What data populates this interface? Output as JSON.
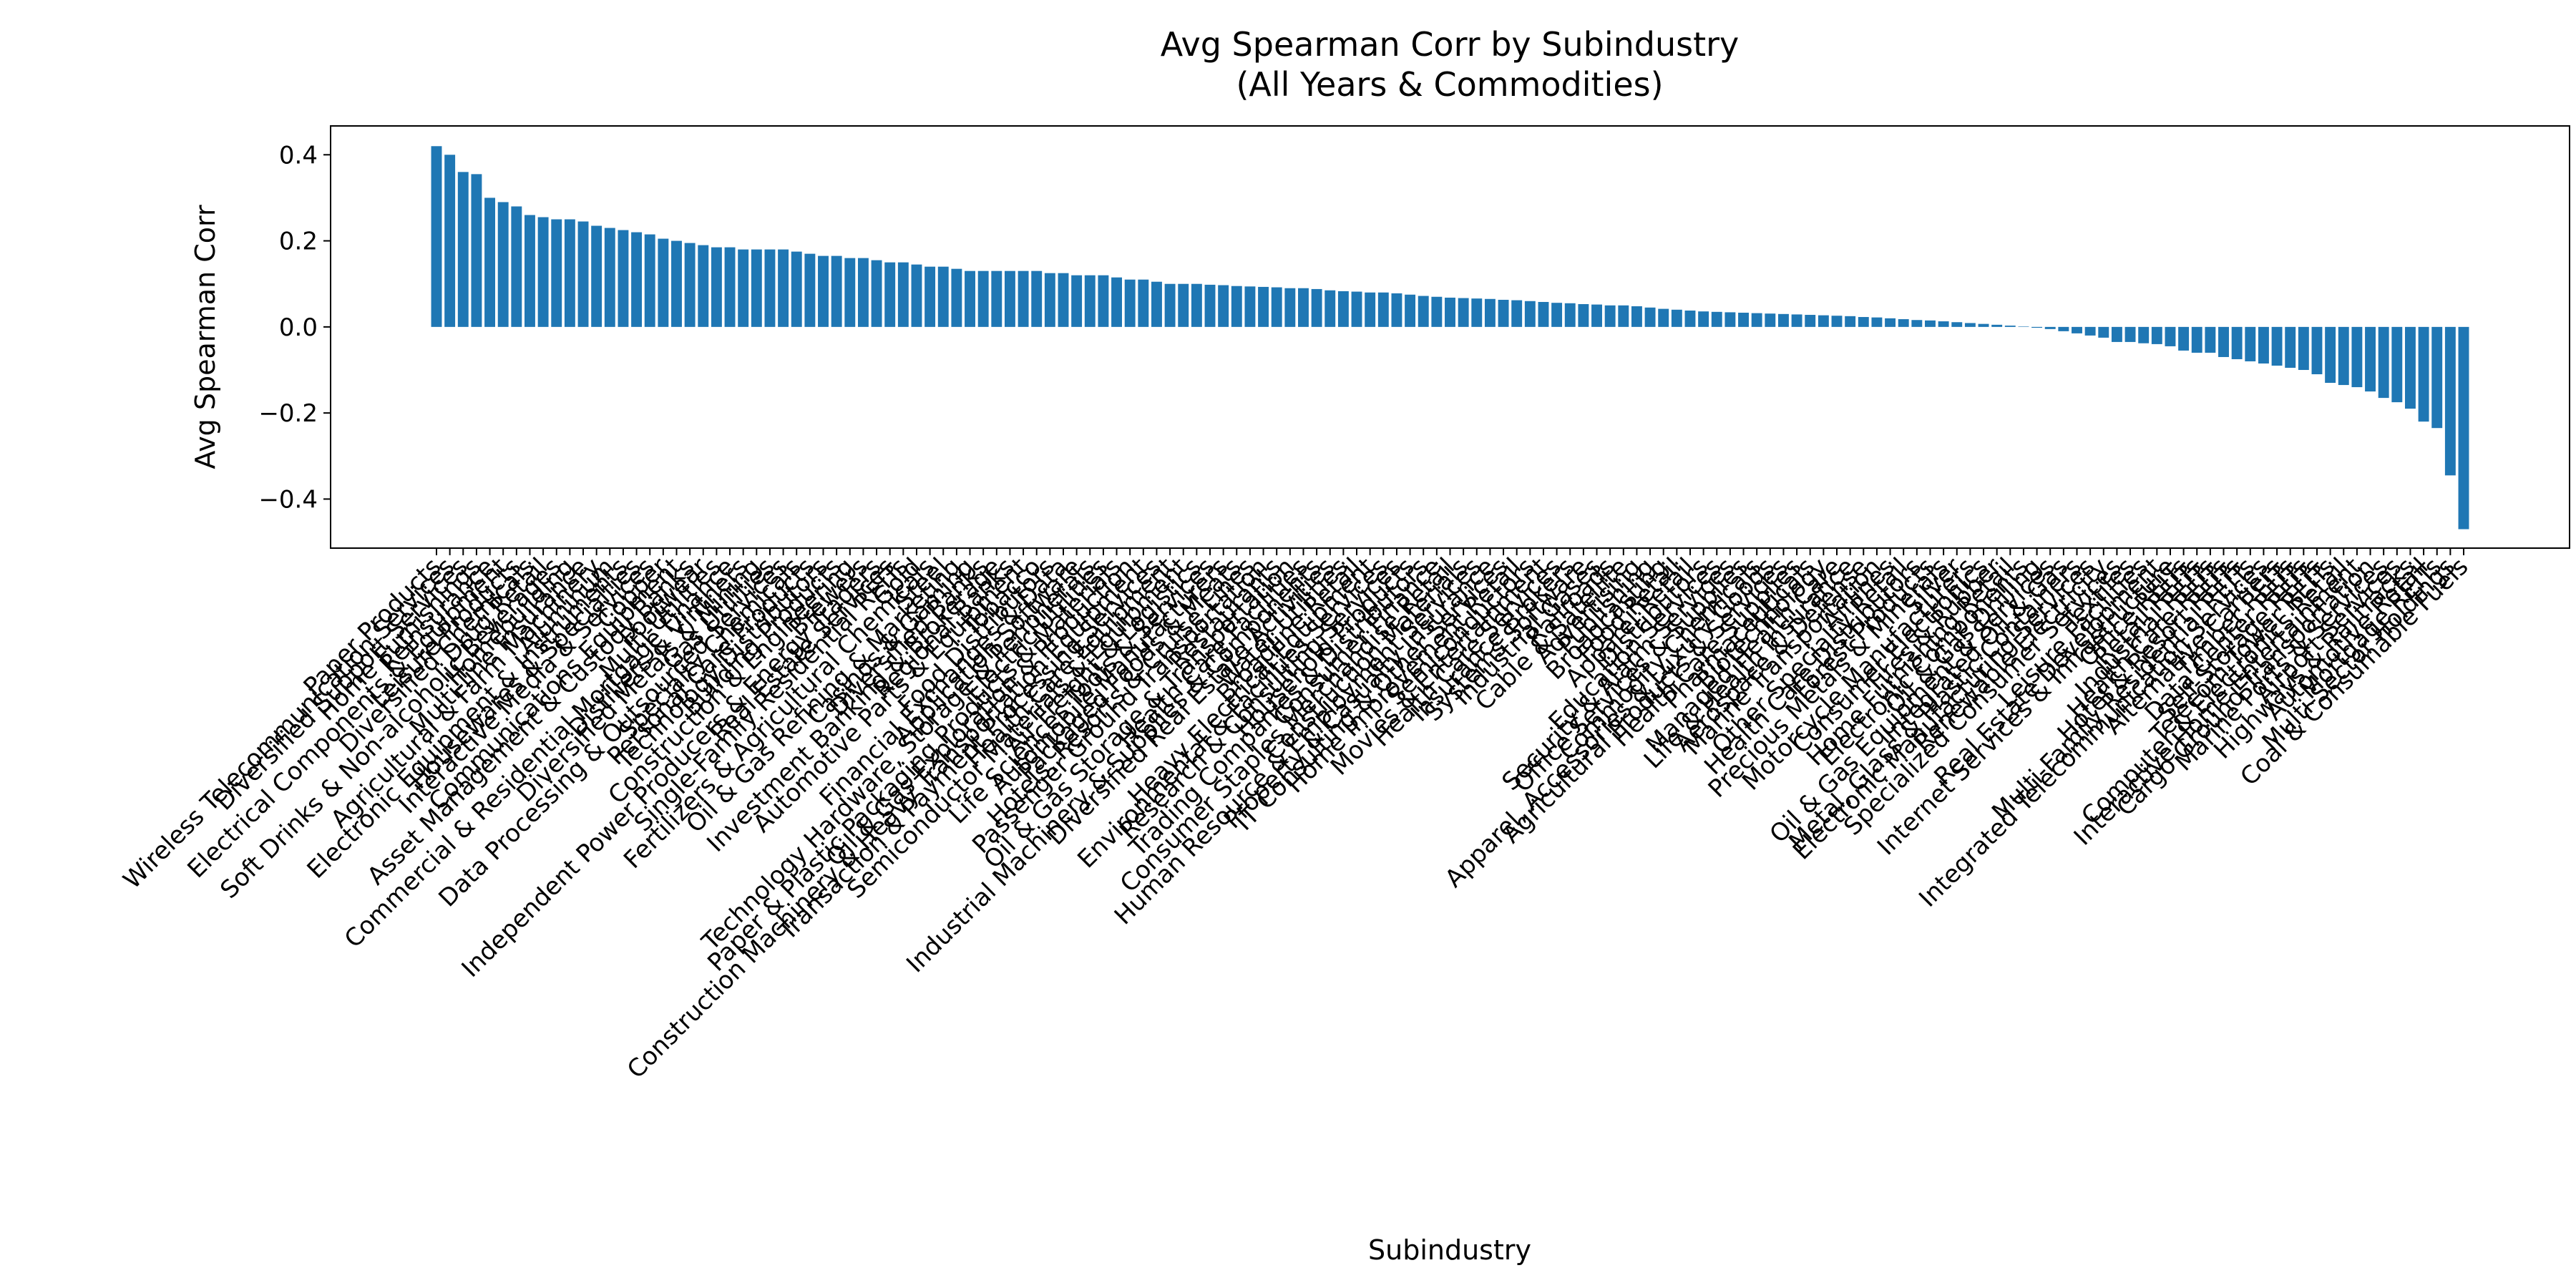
{
  "chart_data": {
    "type": "bar",
    "title": "Avg Spearman Corr by Subindustry",
    "subtitle": "(All Years & Commodities)",
    "x_label": "Subindustry",
    "y_label": "Avg Spearman Corr",
    "color": "#1f77b4",
    "ylim": [
      -0.514,
      0.467
    ],
    "yticks": [
      {
        "value": -0.4,
        "label": "−0.4"
      },
      {
        "value": -0.2,
        "label": "−0.2"
      },
      {
        "value": 0,
        "label": "0.0"
      },
      {
        "value": 0.2,
        "label": "0.2"
      },
      {
        "value": 0.4,
        "label": "0.4"
      }
    ],
    "categories": [
      "Paper Products",
      "Wireless Telecommunication Services",
      "Diversified Support Services",
      "Home Furnishings",
      "Reinsurance",
      "Electrical Components & Equipment",
      "Leisure Products",
      "Diversified Chemicals",
      "Drug Retail",
      "Soft Drinks & Non-alcoholic Beverages",
      "Homebuilding",
      "Multi-line Insurance",
      "Agricultural & Farm Machinery",
      "Aluminum",
      "Electronic Equipment & Instruments",
      "Housewares & Specialties",
      "Interactive Media & Services",
      "Copper",
      "Communications Equipment",
      "Asset Management & Custody Banks",
      "Footwear",
      "Multi-Utilities",
      "Commercial & Residential Mortgage Finance",
      "Distillers & Vintners",
      "Diversified Metals & Mining",
      "Gas Utilities",
      "Data Processing & Outsourced Services",
      "Specialty Chemicals",
      "Personal Care Products",
      "Technology Distributors",
      "Building Products",
      "Construction & Engineering",
      "Brewers",
      "Independent Power Producers & Energy Traders",
      "Real Estate Services",
      "Single-Family Residential REITs",
      "Gold",
      "Fertilizers & Agricultural Chemicals",
      "Steel",
      "Oil & Gas Refining & Marketing",
      "Casinos & Gaming",
      "Diversified Banks",
      "Investment Banking & Brokerage",
      "Regional Banks",
      "Automotive Parts & Equipment",
      "Tobacco",
      "Food Distributors",
      "Financial Exchanges & Data",
      "Application Software",
      "Technology Hardware, Storage & Peripherals",
      "Electric Utilities",
      "Paper & Plastic Packaging Products & Materials",
      "Oil & Gas Exploration & Production",
      "Construction Machinery & Heavy Transportation Equipment",
      "Transaction & Payment Processing Services",
      "Health Care Equipment",
      "Semiconductor Materials & Equipment",
      "Air Freight & Logistics",
      "Life Sciences Tools & Services",
      "Automobile Manufacturers",
      "Packaged Foods & Meats",
      "Hotels, Resorts & Cruise Lines",
      "Passenger Ground Transportation",
      "Restaurants",
      "Oil & Gas Storage & Transportation",
      "Health Care Facilities",
      "Industrial Machinery & Supplies & Components",
      "Diversified Real Estate Activities",
      "Water Utilities",
      "Broadline Retail",
      "Heavy Electrical Equipment",
      "Environmental & Facilities Services",
      "Research & Consulting Services",
      "Household Products",
      "Trading Companies & Distributors",
      "Consumer Finance",
      "Consumer Staples Merchandise Retail",
      "Construction Materials",
      "Human Resource & Employment Services",
      "Property & Casualty Insurance",
      "IT Consulting & Other Services",
      "Home Improvement Retail",
      "Semiconductors",
      "Movies & Entertainment",
      "Health Care Services",
      "Insurance Brokers",
      "Systems Software",
      "Industrial Gases",
      "Railroads",
      "Cable & Satellite",
      "Advertising",
      "Publishing",
      "Broadcasting",
      "Food Retail",
      "Apparel Retail",
      "Distributors",
      "Education Services",
      "Security & Alarm Services",
      "Office Services & Supplies",
      "Commodity Chemicals",
      "Apparel, Accessories & Luxury Goods",
      "Agricultural Products & Services",
      "Health Care Supplies",
      "Pharmaceuticals",
      "Biotechnology",
      "Managed Health Care",
      "Life & Health Insurance",
      "Aerospace & Defense",
      "Marine Transportation",
      "Airlines",
      "Other Specialty Retail",
      "Health Care Distributors",
      "Forest Products",
      "Precious Metals & Minerals",
      "Silver",
      "Motorcycle Manufacturers",
      "Consumer Electronics",
      "Tires & Rubber",
      "Home Furnishing Retail",
      "Electronic Components",
      "Oil & Gas Drilling",
      "Oil & Gas Equipment & Services",
      "Integrated Oil & Gas",
      "Metal, Glass & Plastic Containers",
      "Electronic Manufacturing Services",
      "Renewable Electricity",
      "Specialized Consumer Services",
      "Textiles",
      "Leisure Facilities",
      "Real Estate Development",
      "Internet Services & Infrastructure",
      "Office REITs",
      "Retail REITs",
      "Industrial REITs",
      "Health Care REITs",
      "Hotel & Resort REITs",
      "Multi-Family Residential REITs",
      "Integrated Telecommunication Services",
      "Alternative Carriers",
      "Timber REITs",
      "Data Center REITs",
      "Self-Storage REITs",
      "Telecom Tower REITs",
      "Computer & Electronics Retail",
      "Interactive Home Entertainment",
      "Cargo Ground Transportation",
      "Marine Ports & Services",
      "Airport Services",
      "Highways & Railtracks",
      "Automotive Retail",
      "Mortgage REITs",
      "Multi-Sector Holdings",
      "Coal & Consumable Fuels"
    ],
    "values": [
      0.42,
      0.4,
      0.36,
      0.355,
      0.3,
      0.29,
      0.28,
      0.26,
      0.255,
      0.25,
      0.25,
      0.245,
      0.235,
      0.23,
      0.225,
      0.22,
      0.215,
      0.205,
      0.2,
      0.195,
      0.19,
      0.185,
      0.185,
      0.18,
      0.18,
      0.18,
      0.18,
      0.175,
      0.17,
      0.165,
      0.165,
      0.16,
      0.16,
      0.155,
      0.15,
      0.15,
      0.145,
      0.14,
      0.14,
      0.135,
      0.13,
      0.13,
      0.13,
      0.13,
      0.13,
      0.13,
      0.125,
      0.125,
      0.12,
      0.12,
      0.12,
      0.115,
      0.11,
      0.11,
      0.105,
      0.1,
      0.1,
      0.1,
      0.098,
      0.097,
      0.095,
      0.094,
      0.093,
      0.092,
      0.09,
      0.09,
      0.088,
      0.085,
      0.083,
      0.082,
      0.08,
      0.08,
      0.078,
      0.075,
      0.072,
      0.07,
      0.068,
      0.067,
      0.066,
      0.065,
      0.063,
      0.062,
      0.06,
      0.058,
      0.056,
      0.055,
      0.053,
      0.052,
      0.05,
      0.05,
      0.048,
      0.045,
      0.042,
      0.04,
      0.038,
      0.036,
      0.035,
      0.034,
      0.033,
      0.032,
      0.031,
      0.03,
      0.029,
      0.028,
      0.027,
      0.026,
      0.025,
      0.023,
      0.022,
      0.02,
      0.018,
      0.016,
      0.015,
      0.013,
      0.011,
      0.009,
      0.007,
      0.005,
      0.003,
      0.001,
      -0.002,
      -0.005,
      -0.01,
      -0.015,
      -0.02,
      -0.025,
      -0.035,
      -0.035,
      -0.038,
      -0.04,
      -0.045,
      -0.055,
      -0.06,
      -0.06,
      -0.07,
      -0.075,
      -0.08,
      -0.085,
      -0.09,
      -0.095,
      -0.1,
      -0.11,
      -0.13,
      -0.135,
      -0.14,
      -0.15,
      -0.165,
      -0.175,
      -0.19,
      -0.22,
      -0.235,
      -0.345,
      -0.47
    ]
  }
}
